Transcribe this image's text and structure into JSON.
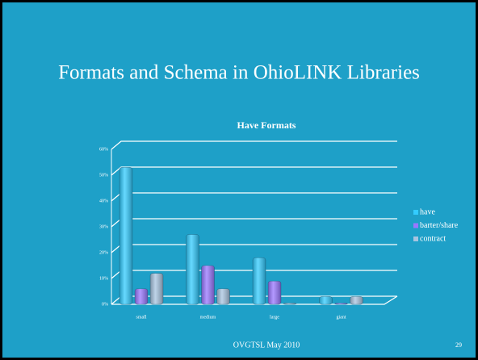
{
  "slide": {
    "title": "Formats and Schema in OhioLINK Libraries",
    "footer": "OVGTSL May 2010",
    "page_number": "29"
  },
  "chart_data": {
    "type": "bar",
    "title": "Have Formats",
    "categories": [
      "small",
      "medium",
      "large",
      "giant"
    ],
    "series": [
      {
        "name": "have",
        "color": "#33ccff",
        "values": [
          53,
          27,
          18,
          3
        ]
      },
      {
        "name": "barter/share",
        "color": "#9977ff",
        "values": [
          6,
          15,
          9,
          0
        ]
      },
      {
        "name": "contract",
        "color": "#a8c4e0",
        "values": [
          12,
          6,
          0,
          3
        ]
      }
    ],
    "ylim": [
      0,
      60
    ],
    "yticks": [
      {
        "value": 0,
        "label": "0%"
      },
      {
        "value": 10,
        "label": "10%"
      },
      {
        "value": 20,
        "label": "20%"
      },
      {
        "value": 30,
        "label": "30%"
      },
      {
        "value": 40,
        "label": "40%"
      },
      {
        "value": 50,
        "label": "50%"
      },
      {
        "value": 60,
        "label": "60%"
      }
    ],
    "grid": true,
    "legend": "right"
  }
}
